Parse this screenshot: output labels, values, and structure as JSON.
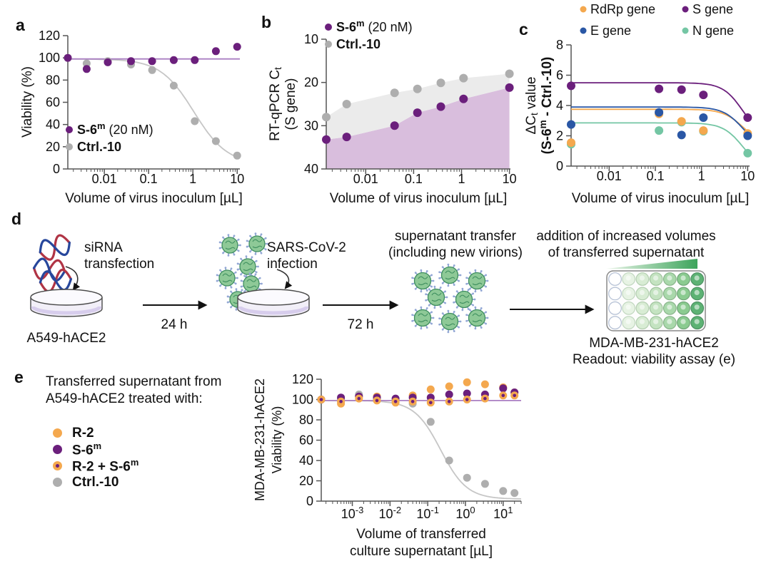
{
  "panels": {
    "a": "a",
    "b": "b",
    "c": "c",
    "d": "d",
    "e": "e"
  },
  "colors": {
    "purple": "#6b1f7c",
    "purple_fit": "#aa7fc2",
    "purple_area": "#d9bedd",
    "gray": "#aeaeae",
    "gray_fit": "#c6c6c6",
    "gray_area": "#ebebeb",
    "orange": "#f4a84e",
    "blue": "#2a57a5",
    "teal": "#74c6a4",
    "axis": "#555555",
    "text": "#111111",
    "virus_body": "#8ec997",
    "virus_outline": "#3f8f5f",
    "virus_spike": "#93a8d5",
    "plate_green": "#3ca45b"
  },
  "chart_data": [
    {
      "id": "a",
      "type": "scatter",
      "xlabel": [
        "Volume of virus inoculum [µL]"
      ],
      "ylabel": [
        "Viability (%)"
      ],
      "xscale": "log",
      "xlim": [
        0.0015,
        11.5
      ],
      "ylim": [
        0,
        120
      ],
      "yticks": [
        0,
        20,
        40,
        60,
        80,
        100,
        120
      ],
      "xticks": [
        {
          "v": 0.01,
          "label": "0.01"
        },
        {
          "v": 0.1,
          "label": "0.1"
        },
        {
          "v": 1,
          "label": "1"
        },
        {
          "v": 10,
          "label": "10"
        }
      ],
      "legend": [
        {
          "bold": "S-6^{m}",
          "normal": " (20 nM)",
          "color": "purple"
        },
        {
          "bold": "Ctrl.-10",
          "normal": "",
          "color": "gray"
        }
      ],
      "series": [
        {
          "name": "Ctrl.-10",
          "color": "gray",
          "x": [
            0.0015,
            0.004,
            0.012,
            0.04,
            0.12,
            0.37,
            1.1,
            3.3,
            10
          ],
          "y": [
            100,
            95,
            97,
            94,
            89,
            75,
            43,
            25,
            12
          ],
          "fit": {
            "kind": "4pl",
            "top": 99,
            "bottom": 4,
            "ec50": 1.05,
            "hill": 1.15,
            "color": "gray_fit"
          }
        },
        {
          "name": "S-6m (20 nM)",
          "color": "purple",
          "x": [
            0.0015,
            0.004,
            0.012,
            0.04,
            0.12,
            0.37,
            1.1,
            3.3,
            10
          ],
          "y": [
            100,
            90,
            96,
            97,
            97,
            98,
            98,
            106,
            110
          ],
          "fit": {
            "kind": "flat",
            "y": 99,
            "color": "purple_fit"
          }
        }
      ]
    },
    {
      "id": "b",
      "type": "scatter-area",
      "xlabel": [
        "Volume of virus inoculum [µL]"
      ],
      "ylabel": [
        "RT-qPCR C_{t}",
        "(S gene)"
      ],
      "xscale": "log",
      "xlim": [
        0.0015,
        10.5
      ],
      "ylim": [
        40,
        10
      ],
      "yticks": [
        10,
        20,
        30,
        40
      ],
      "xticks": [
        {
          "v": 0.01,
          "label": "0.01"
        },
        {
          "v": 0.1,
          "label": "0.1"
        },
        {
          "v": 1,
          "label": "1"
        },
        {
          "v": 10,
          "label": "10"
        }
      ],
      "legend": [
        {
          "bold": "S-6^{m}",
          "normal": " (20 nM)",
          "color": "purple"
        },
        {
          "bold": "Ctrl.-10",
          "normal": "",
          "color": "gray"
        }
      ],
      "series": [
        {
          "name": "S-6m (20 nM)",
          "color": "purple",
          "x": [
            0.0015,
            0.004,
            0.04,
            0.12,
            0.37,
            1.1,
            10
          ],
          "y": [
            33.2,
            32.6,
            30.0,
            27.0,
            25.6,
            23.8,
            21.2
          ],
          "area": {
            "to": "bottom",
            "fill": "purple_area"
          }
        },
        {
          "name": "Ctrl.-10",
          "color": "gray",
          "x": [
            0.0015,
            0.004,
            0.04,
            0.12,
            0.37,
            1.1,
            10
          ],
          "y": [
            28.0,
            25.0,
            22.4,
            21.5,
            20.1,
            19.0,
            18.0
          ],
          "area": {
            "to": "series0",
            "fill": "gray_area"
          }
        }
      ]
    },
    {
      "id": "c",
      "type": "scatter",
      "xlabel": [
        "Volume of virus inoculum [µL]"
      ],
      "ylabel": [
        "ΔC_{t} value",
        "(S-6^{m} - Ctrl.-10)"
      ],
      "ylabel_bold_line": 1,
      "xscale": "log",
      "xlim": [
        0.0015,
        11
      ],
      "ylim": [
        0,
        8
      ],
      "yticks": [
        0,
        2,
        4,
        6,
        8
      ],
      "xticks": [
        {
          "v": 0.01,
          "label": "0.01"
        },
        {
          "v": 0.1,
          "label": "0.1"
        },
        {
          "v": 1,
          "label": "1"
        },
        {
          "v": 10,
          "label": "10"
        }
      ],
      "legend2col": [
        [
          {
            "label": "RdRp gene",
            "color": "orange"
          },
          {
            "label": "E gene",
            "color": "blue"
          }
        ],
        [
          {
            "label": "S gene",
            "color": "purple"
          },
          {
            "label": "N gene",
            "color": "teal"
          }
        ]
      ],
      "series": [
        {
          "name": "N gene",
          "color": "teal",
          "x": [
            0.0015,
            0.12,
            0.37,
            1.1,
            10
          ],
          "y": [
            1.45,
            2.35,
            2.9,
            2.3,
            0.85
          ],
          "fit": {
            "kind": "4pl",
            "top": 2.85,
            "bottom": -0.35,
            "ec50": 8,
            "hill": 2,
            "color": "teal"
          }
        },
        {
          "name": "RdRp gene",
          "color": "orange",
          "x": [
            0.0015,
            0.12,
            0.37,
            1.1,
            10
          ],
          "y": [
            1.55,
            3.45,
            2.95,
            2.35,
            2.15
          ],
          "fit": {
            "kind": "4pl",
            "top": 3.75,
            "bottom": 1.37,
            "ec50": 8,
            "hill": 2,
            "color": "orange"
          }
        },
        {
          "name": "E gene",
          "color": "blue",
          "x": [
            0.0015,
            0.12,
            0.37,
            1.1,
            10
          ],
          "y": [
            2.75,
            3.55,
            2.05,
            3.2,
            2.0
          ],
          "fit": {
            "kind": "4pl",
            "top": 3.9,
            "bottom": 1.03,
            "ec50": 8,
            "hill": 2,
            "color": "blue"
          }
        },
        {
          "name": "S gene",
          "color": "purple",
          "x": [
            0.0015,
            0.12,
            0.37,
            1.1,
            10
          ],
          "y": [
            5.3,
            5.1,
            5.05,
            4.7,
            3.2
          ],
          "fit": {
            "kind": "4pl",
            "top": 5.5,
            "bottom": 1.73,
            "ec50": 8,
            "hill": 2,
            "color": "purple"
          }
        }
      ]
    },
    {
      "id": "e",
      "type": "scatter",
      "xlabel": [
        "Volume of transferred",
        "culture supernatant [µL]"
      ],
      "ylabel": [
        "MDA-MB-231-hACE2",
        "Viability (%)"
      ],
      "xscale": "log",
      "xlim": [
        0.00015,
        30
      ],
      "ylim": [
        0,
        120
      ],
      "yticks": [
        0,
        20,
        40,
        60,
        80,
        100,
        120
      ],
      "xticks": [
        {
          "v": 0.001,
          "label": "10^{-3}"
        },
        {
          "v": 0.01,
          "label": "10^{-2}"
        },
        {
          "v": 0.1,
          "label": "10^{-1}"
        },
        {
          "v": 1,
          "label": "10^{0}"
        },
        {
          "v": 10,
          "label": "10^{1}"
        }
      ],
      "series": [
        {
          "name": "R-2",
          "color": "orange",
          "x": [
            0.00015,
            0.0005,
            0.0015,
            0.0045,
            0.014,
            0.04,
            0.12,
            0.37,
            1.1,
            3.3,
            10,
            20
          ],
          "y": [
            100,
            96,
            104,
            103,
            97,
            104,
            110,
            113,
            117,
            115,
            112,
            107
          ]
        },
        {
          "name": "Ctrl.-10",
          "color": "gray",
          "x": [
            0.00015,
            0.0005,
            0.0015,
            0.0045,
            0.014,
            0.04,
            0.12,
            0.37,
            1.1,
            3.3,
            10,
            20
          ],
          "y": [
            100,
            100,
            105,
            100,
            99,
            96,
            78,
            40,
            23,
            17,
            10,
            8
          ],
          "fit": {
            "kind": "4pl",
            "top": 99,
            "bottom": 2,
            "ec50": 0.22,
            "hill": 1.25,
            "color": "gray_fit"
          }
        },
        {
          "name": "S-6m",
          "color": "purple",
          "x": [
            0.00015,
            0.0005,
            0.0015,
            0.0045,
            0.014,
            0.04,
            0.12,
            0.37,
            1.1,
            3.3,
            10,
            20
          ],
          "y": [
            100,
            102,
            103,
            102,
            101,
            102,
            102,
            105,
            106,
            105,
            111,
            107
          ],
          "fit": {
            "kind": "flat",
            "y": 99,
            "color": "purple_fit"
          }
        },
        {
          "name": "R-2 + S-6m",
          "color": "orange",
          "marker": "ring",
          "ring_inner": "purple",
          "x": [
            0.00015,
            0.0005,
            0.0015,
            0.0045,
            0.014,
            0.04,
            0.12,
            0.37,
            1.1,
            3.3,
            10,
            20
          ],
          "y": [
            100,
            98,
            101,
            99,
            98,
            98,
            97,
            98,
            100,
            101,
            104,
            104
          ]
        }
      ]
    }
  ],
  "diagram": {
    "sirna_l1": "siRNA",
    "sirna_l2": "transfection",
    "dish1_label": "A549-hACE2",
    "arrow1_label": "24 h",
    "virus_l1": "SARS-CoV-2",
    "virus_l2": "infection",
    "arrow2_label": "72 h",
    "transfer_l1": "supernatant transfer",
    "transfer_l2": "(including new virions)",
    "addition_l1": "addition of increased volumes",
    "addition_l2": "of transferred supernatant",
    "plate_label": "MDA-MB-231-hACE2",
    "readout_label": "Readout: viability assay (e)"
  },
  "legend_e": {
    "title_l1": "Transferred supernatant from",
    "title_l2": "A549-hACE2 treated with:",
    "items": [
      {
        "label": "R-2",
        "marker": "dot",
        "color": "orange"
      },
      {
        "label": "S-6^{m}",
        "marker": "dot",
        "color": "purple"
      },
      {
        "label": "R-2 + S-6^{m}",
        "marker": "ring",
        "color": "orange",
        "inner": "purple"
      },
      {
        "label": "Ctrl.-10",
        "marker": "dot",
        "color": "gray"
      }
    ]
  }
}
